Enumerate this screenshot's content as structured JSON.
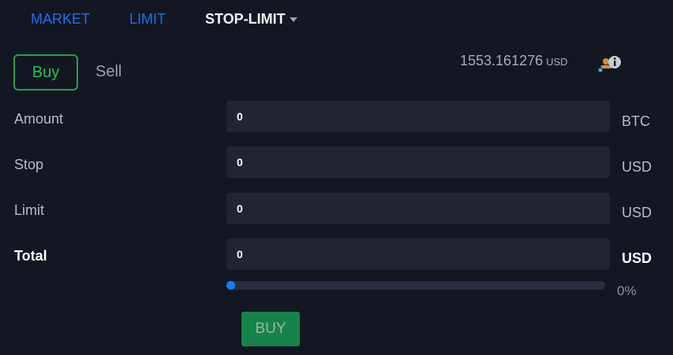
{
  "tabs": [
    {
      "label": "MARKET"
    },
    {
      "label": "LIMIT"
    },
    {
      "label": "STOP-LIMIT"
    }
  ],
  "side": {
    "buy": "Buy",
    "sell": "Sell"
  },
  "balance": {
    "value": "1553.161276",
    "currency": "USD",
    "icon": "wallet-info-icon"
  },
  "fields": [
    {
      "label": "Amount",
      "value": "0",
      "unit": "BTC"
    },
    {
      "label": "Stop",
      "value": "0",
      "unit": "USD"
    },
    {
      "label": "Limit",
      "value": "0",
      "unit": "USD"
    },
    {
      "label": "Total",
      "value": "0",
      "unit": "USD"
    }
  ],
  "slider": {
    "value_percent": 0,
    "label": "0%"
  },
  "submit": "BUY",
  "colors": {
    "accent_blue": "#1a73f0",
    "buy_green": "#16834a",
    "background": "#131722"
  }
}
